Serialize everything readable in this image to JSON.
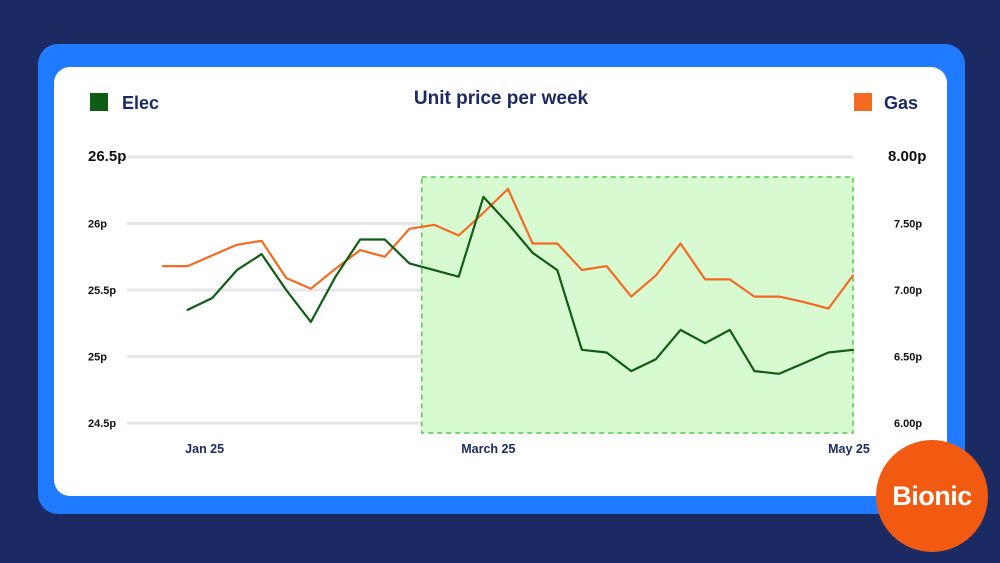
{
  "chart_data": {
    "type": "line",
    "title": "Unit price per week",
    "x_ticks": [
      "Jan 25",
      "March 25",
      "May 25"
    ],
    "x_tick_index": [
      1,
      13,
      28
    ],
    "highlight_range": [
      10.5,
      28
    ],
    "left_axis": {
      "ticks": [
        "26.5p",
        "26p",
        "25.5p",
        "25p",
        "24.5p"
      ],
      "tick_values": [
        26.5,
        26.0,
        25.5,
        25.0,
        24.5
      ],
      "ylim": [
        24.5,
        26.5
      ]
    },
    "right_axis": {
      "ticks": [
        "8.00p",
        "7.50p",
        "7.00p",
        "6.50p",
        "6.00p"
      ],
      "tick_values": [
        8.0,
        7.5,
        7.0,
        6.5,
        6.0
      ],
      "ylim": [
        6.0,
        8.0
      ]
    },
    "series": [
      {
        "name": "Elec",
        "axis": "left",
        "color": "#0f5c14",
        "x": [
          1,
          2,
          3,
          4,
          5,
          6,
          7,
          8,
          9,
          10,
          11,
          12,
          13,
          14,
          15,
          16,
          17,
          18,
          19,
          20,
          21,
          22,
          23,
          24,
          25,
          26,
          27,
          28
        ],
        "values": [
          25.35,
          25.44,
          25.65,
          25.77,
          25.5,
          25.26,
          25.6,
          25.88,
          25.88,
          25.7,
          25.65,
          25.6,
          26.2,
          26.0,
          25.78,
          25.65,
          25.05,
          25.03,
          24.89,
          24.98,
          25.2,
          25.1,
          25.2,
          24.89,
          24.87,
          24.95,
          25.03,
          25.05
        ]
      },
      {
        "name": "Gas",
        "axis": "right",
        "color": "#f46a22",
        "x": [
          0,
          1,
          2,
          3,
          4,
          5,
          6,
          7,
          8,
          9,
          10,
          11,
          12,
          13,
          14,
          15,
          16,
          17,
          18,
          19,
          20,
          21,
          22,
          23,
          24,
          25,
          26,
          27,
          28
        ],
        "values": [
          7.18,
          7.18,
          7.26,
          7.34,
          7.37,
          7.09,
          7.01,
          7.16,
          7.3,
          7.25,
          7.46,
          7.49,
          7.41,
          7.58,
          7.76,
          7.35,
          7.35,
          7.15,
          7.18,
          6.95,
          7.11,
          7.35,
          7.08,
          7.08,
          6.95,
          6.95,
          6.91,
          6.86,
          7.11
        ]
      }
    ],
    "grid": true
  },
  "brand": {
    "logo_text": "Bionic",
    "logo_color": "#f25a12"
  },
  "colors": {
    "background": "#1c2a63",
    "frame": "#1f7bff",
    "highlight_fill": "#d7fad0",
    "highlight_stroke": "#4fcb49"
  }
}
